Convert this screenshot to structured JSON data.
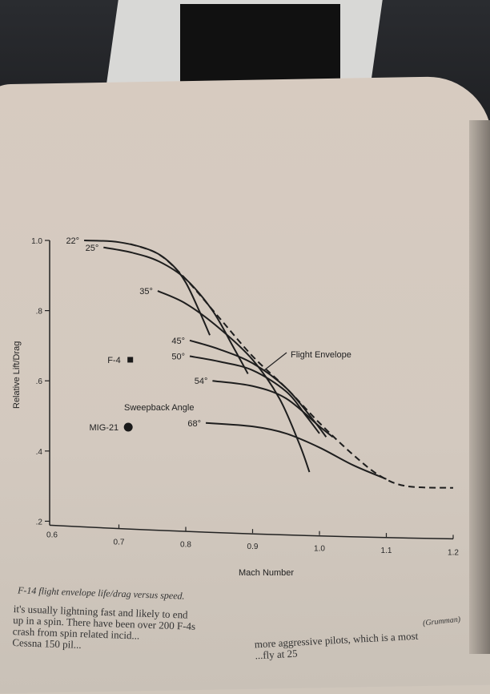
{
  "chart_data": {
    "type": "line",
    "xlabel": "Mach Number",
    "ylabel": "Relative Lift/Drag",
    "xlim": [
      0.6,
      1.2
    ],
    "ylim": [
      0.2,
      1.0
    ],
    "x_ticks": [
      "0.6",
      "0.7",
      "0.8",
      "0.9",
      "1.0",
      "1.1",
      "1.2"
    ],
    "y_ticks": [
      "1.0",
      ".8",
      ".6",
      ".4",
      ".2"
    ],
    "grid": false,
    "series": [
      {
        "name": "22°",
        "style": "solid",
        "points": [
          [
            0.648,
            1.0
          ],
          [
            0.7,
            0.995
          ],
          [
            0.75,
            0.97
          ],
          [
            0.78,
            0.93
          ],
          [
            0.8,
            0.88
          ],
          [
            0.82,
            0.8
          ],
          [
            0.836,
            0.73
          ]
        ]
      },
      {
        "name": "25°",
        "style": "solid",
        "points": [
          [
            0.677,
            0.98
          ],
          [
            0.72,
            0.965
          ],
          [
            0.76,
            0.94
          ],
          [
            0.8,
            0.89
          ],
          [
            0.84,
            0.8
          ],
          [
            0.87,
            0.7
          ],
          [
            0.893,
            0.62
          ]
        ]
      },
      {
        "name": "35°",
        "style": "solid",
        "points": [
          [
            0.758,
            0.856
          ],
          [
            0.8,
            0.82
          ],
          [
            0.85,
            0.75
          ],
          [
            0.9,
            0.66
          ],
          [
            0.94,
            0.55
          ],
          [
            0.97,
            0.42
          ],
          [
            0.985,
            0.34
          ]
        ]
      },
      {
        "name": "45°",
        "style": "solid",
        "points": [
          [
            0.806,
            0.715
          ],
          [
            0.85,
            0.69
          ],
          [
            0.9,
            0.65
          ],
          [
            0.95,
            0.58
          ],
          [
            0.99,
            0.49
          ],
          [
            1.01,
            0.44
          ]
        ]
      },
      {
        "name": "50°",
        "style": "solid",
        "points": [
          [
            0.806,
            0.67
          ],
          [
            0.85,
            0.655
          ],
          [
            0.9,
            0.63
          ],
          [
            0.95,
            0.57
          ],
          [
            0.98,
            0.5
          ],
          [
            1.0,
            0.45
          ]
        ]
      },
      {
        "name": "54°",
        "style": "solid",
        "points": [
          [
            0.84,
            0.6
          ],
          [
            0.9,
            0.585
          ],
          [
            0.95,
            0.55
          ],
          [
            1.0,
            0.47
          ],
          [
            1.02,
            0.44
          ]
        ]
      },
      {
        "name": "68°",
        "style": "solid",
        "points": [
          [
            0.83,
            0.48
          ],
          [
            0.9,
            0.47
          ],
          [
            0.95,
            0.45
          ],
          [
            1.0,
            0.41
          ],
          [
            1.05,
            0.36
          ],
          [
            1.1,
            0.32
          ]
        ]
      },
      {
        "name": "Flight Envelope",
        "style": "dashed",
        "points": [
          [
            0.717,
            0.99
          ],
          [
            0.76,
            0.96
          ],
          [
            0.8,
            0.89
          ],
          [
            0.85,
            0.78
          ],
          [
            0.9,
            0.67
          ],
          [
            0.95,
            0.58
          ],
          [
            1.0,
            0.48
          ],
          [
            1.05,
            0.39
          ],
          [
            1.09,
            0.33
          ],
          [
            1.13,
            0.3
          ],
          [
            1.2,
            0.295
          ]
        ]
      }
    ],
    "markers": [
      {
        "name": "F-4",
        "shape": "square",
        "x": 0.717,
        "y": 0.66
      },
      {
        "name": "MIG-21",
        "shape": "circle",
        "x": 0.714,
        "y": 0.468
      }
    ],
    "annotations": {
      "sweepback": "Sweepback Angle",
      "envelope": "Flight Envelope"
    }
  },
  "caption": "F-14 flight envelope life/drag versus speed.",
  "credit": "(Grumman)",
  "body_text": {
    "col1": [
      "it's usually lightning fast and likely to end",
      "up in a spin. There have been over 200 F-4s",
      "crash from spin related incid...",
      "Cessna 150 pil..."
    ],
    "col2": [
      "more aggressive pilots, which is a most",
      "...fly at 25"
    ]
  }
}
